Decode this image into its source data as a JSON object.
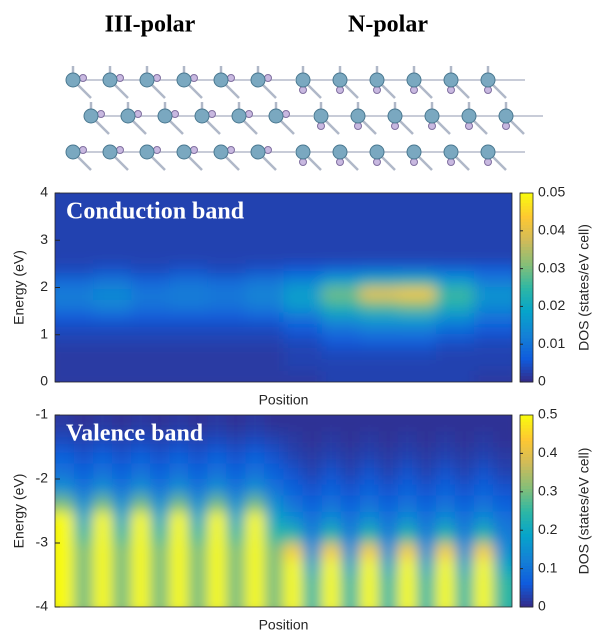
{
  "structure": {
    "labels": [
      "III-polar",
      "N-polar"
    ]
  },
  "chart_data": [
    {
      "type": "heatmap",
      "annotation": "Conduction band",
      "xlabel": "Position",
      "ylabel": "Energy (eV)",
      "colorbar_label": "DOS (states/eV cell)",
      "ylim": [
        0,
        4
      ],
      "yticks": [
        0,
        1,
        2,
        3,
        4
      ],
      "zlim": [
        0,
        0.05
      ],
      "zticks": [
        0,
        0.01,
        0.02,
        0.03,
        0.04,
        0.05
      ],
      "z": [
        [
          0.002,
          0.002,
          0.002,
          0.002,
          0.002,
          0.002,
          0.002,
          0.003,
          0.003,
          0.003,
          0.003,
          0.002
        ],
        [
          0.002,
          0.002,
          0.002,
          0.002,
          0.002,
          0.002,
          0.003,
          0.003,
          0.003,
          0.003,
          0.003,
          0.003
        ],
        [
          0.002,
          0.002,
          0.002,
          0.002,
          0.002,
          0.002,
          0.003,
          0.004,
          0.004,
          0.004,
          0.003,
          0.003
        ],
        [
          0.003,
          0.003,
          0.003,
          0.003,
          0.003,
          0.003,
          0.004,
          0.006,
          0.007,
          0.007,
          0.005,
          0.004
        ],
        [
          0.004,
          0.004,
          0.004,
          0.004,
          0.004,
          0.004,
          0.006,
          0.01,
          0.012,
          0.012,
          0.009,
          0.006
        ],
        [
          0.006,
          0.007,
          0.006,
          0.006,
          0.006,
          0.007,
          0.01,
          0.016,
          0.018,
          0.019,
          0.015,
          0.01
        ],
        [
          0.011,
          0.013,
          0.01,
          0.011,
          0.01,
          0.012,
          0.017,
          0.024,
          0.028,
          0.03,
          0.022,
          0.014
        ],
        [
          0.012,
          0.014,
          0.011,
          0.012,
          0.011,
          0.013,
          0.018,
          0.03,
          0.042,
          0.044,
          0.026,
          0.016
        ],
        [
          0.009,
          0.011,
          0.008,
          0.01,
          0.009,
          0.011,
          0.014,
          0.02,
          0.024,
          0.025,
          0.018,
          0.012
        ],
        [
          0.004,
          0.005,
          0.004,
          0.005,
          0.004,
          0.005,
          0.006,
          0.008,
          0.009,
          0.009,
          0.008,
          0.007
        ],
        [
          0.003,
          0.003,
          0.003,
          0.003,
          0.003,
          0.003,
          0.003,
          0.003,
          0.003,
          0.003,
          0.003,
          0.003
        ],
        [
          0.003,
          0.003,
          0.003,
          0.003,
          0.003,
          0.003,
          0.003,
          0.003,
          0.003,
          0.003,
          0.003,
          0.003
        ],
        [
          0.003,
          0.003,
          0.003,
          0.003,
          0.003,
          0.003,
          0.003,
          0.003,
          0.003,
          0.003,
          0.003,
          0.003
        ],
        [
          0.003,
          0.003,
          0.003,
          0.003,
          0.003,
          0.003,
          0.003,
          0.003,
          0.003,
          0.003,
          0.003,
          0.003
        ],
        [
          0.003,
          0.003,
          0.003,
          0.003,
          0.003,
          0.003,
          0.003,
          0.003,
          0.003,
          0.003,
          0.003,
          0.003
        ],
        [
          0.003,
          0.003,
          0.003,
          0.003,
          0.003,
          0.003,
          0.003,
          0.003,
          0.003,
          0.003,
          0.003,
          0.003
        ]
      ]
    },
    {
      "type": "heatmap",
      "annotation": "Valence band",
      "xlabel": "Position",
      "ylabel": "Energy (eV)",
      "colorbar_label": "DOS (states/eV cell)",
      "ylim": [
        -4,
        -1
      ],
      "yticks": [
        -4,
        -3,
        -2,
        -1
      ],
      "zlim": [
        0,
        0.5
      ],
      "zticks": [
        0,
        0.1,
        0.2,
        0.3,
        0.4,
        0.5
      ],
      "z": [
        [
          0.5,
          0.3,
          0.5,
          0.3,
          0.5,
          0.3,
          0.5,
          0.3,
          0.5,
          0.3,
          0.5,
          0.3,
          0.5,
          0.25,
          0.5,
          0.25,
          0.5,
          0.25,
          0.5,
          0.25,
          0.5,
          0.25,
          0.5,
          0.25
        ],
        [
          0.5,
          0.3,
          0.5,
          0.3,
          0.5,
          0.3,
          0.5,
          0.3,
          0.5,
          0.3,
          0.5,
          0.3,
          0.5,
          0.25,
          0.5,
          0.25,
          0.5,
          0.25,
          0.5,
          0.25,
          0.5,
          0.25,
          0.5,
          0.25
        ],
        [
          0.5,
          0.3,
          0.5,
          0.3,
          0.5,
          0.3,
          0.5,
          0.3,
          0.5,
          0.3,
          0.5,
          0.3,
          0.5,
          0.2,
          0.5,
          0.2,
          0.5,
          0.2,
          0.5,
          0.2,
          0.5,
          0.2,
          0.5,
          0.2
        ],
        [
          0.5,
          0.3,
          0.5,
          0.3,
          0.5,
          0.3,
          0.5,
          0.3,
          0.5,
          0.3,
          0.5,
          0.3,
          0.45,
          0.15,
          0.45,
          0.15,
          0.45,
          0.15,
          0.45,
          0.15,
          0.45,
          0.15,
          0.45,
          0.15
        ],
        [
          0.5,
          0.25,
          0.5,
          0.25,
          0.5,
          0.25,
          0.5,
          0.25,
          0.5,
          0.25,
          0.5,
          0.25,
          0.25,
          0.12,
          0.25,
          0.12,
          0.25,
          0.12,
          0.25,
          0.12,
          0.25,
          0.12,
          0.25,
          0.12
        ],
        [
          0.5,
          0.2,
          0.5,
          0.2,
          0.5,
          0.2,
          0.5,
          0.2,
          0.5,
          0.2,
          0.5,
          0.2,
          0.15,
          0.1,
          0.15,
          0.1,
          0.15,
          0.1,
          0.15,
          0.1,
          0.15,
          0.1,
          0.15,
          0.1
        ],
        [
          0.3,
          0.15,
          0.3,
          0.15,
          0.3,
          0.15,
          0.3,
          0.15,
          0.3,
          0.15,
          0.3,
          0.15,
          0.1,
          0.07,
          0.1,
          0.07,
          0.1,
          0.07,
          0.1,
          0.07,
          0.1,
          0.07,
          0.1,
          0.07
        ],
        [
          0.15,
          0.1,
          0.15,
          0.1,
          0.15,
          0.1,
          0.15,
          0.1,
          0.15,
          0.1,
          0.15,
          0.1,
          0.07,
          0.05,
          0.07,
          0.05,
          0.07,
          0.05,
          0.07,
          0.05,
          0.07,
          0.05,
          0.07,
          0.05
        ],
        [
          0.1,
          0.07,
          0.1,
          0.07,
          0.1,
          0.07,
          0.1,
          0.07,
          0.1,
          0.07,
          0.1,
          0.07,
          0.05,
          0.03,
          0.05,
          0.03,
          0.05,
          0.03,
          0.05,
          0.03,
          0.05,
          0.03,
          0.05,
          0.03
        ],
        [
          0.07,
          0.05,
          0.07,
          0.05,
          0.07,
          0.05,
          0.07,
          0.05,
          0.07,
          0.05,
          0.07,
          0.05,
          0.03,
          0.02,
          0.03,
          0.02,
          0.03,
          0.02,
          0.03,
          0.02,
          0.03,
          0.02,
          0.03,
          0.02
        ],
        [
          0.04,
          0.03,
          0.04,
          0.03,
          0.04,
          0.03,
          0.04,
          0.03,
          0.04,
          0.03,
          0.04,
          0.03,
          0.02,
          0.01,
          0.02,
          0.01,
          0.02,
          0.01,
          0.02,
          0.01,
          0.02,
          0.01,
          0.02,
          0.01
        ],
        [
          0.02,
          0.01,
          0.02,
          0.01,
          0.02,
          0.01,
          0.02,
          0.01,
          0.02,
          0.01,
          0.02,
          0.01,
          0.01,
          0.01,
          0.01,
          0.01,
          0.01,
          0.01,
          0.01,
          0.01,
          0.01,
          0.01,
          0.01,
          0.01
        ]
      ]
    }
  ]
}
